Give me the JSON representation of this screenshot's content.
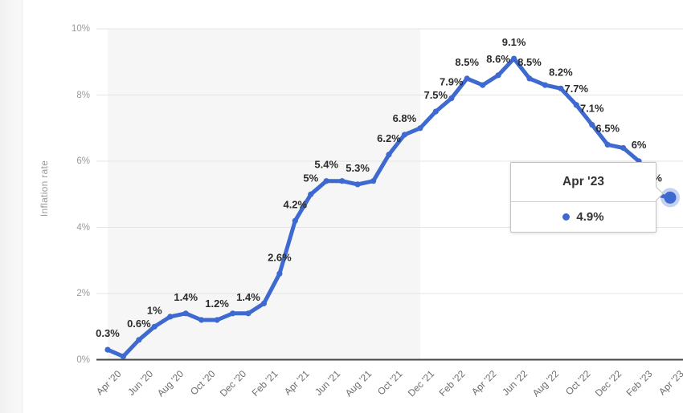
{
  "y_axis_title": "Inflation rate",
  "chart_data": {
    "type": "line",
    "ylabel": "Inflation rate",
    "ylim": [
      0,
      10
    ],
    "grid": "horizontal-only",
    "legend_position": "none",
    "y_ticks": [
      "0%",
      "2%",
      "4%",
      "6%",
      "8%",
      "10%"
    ],
    "x_tick_labels": [
      "Apr '20",
      "Jun '20",
      "Aug '20",
      "Oct '20",
      "Dec '20",
      "Feb '21",
      "Apr '21",
      "Jun '21",
      "Aug '21",
      "Oct '21",
      "Dec '21",
      "Feb '22",
      "Apr '22",
      "Jun '22",
      "Aug '22",
      "Oct '22",
      "Dec '22",
      "Feb '23",
      "Apr '23"
    ],
    "colors": {
      "line": "#3E69D0",
      "highlight_halo": "rgba(62,105,208,0.3)",
      "band": "#f6f6f6",
      "grid": "#e4e4e4",
      "axis": "#464646",
      "point_label": "#2b2b2b",
      "y_tick": "#9a9a9a",
      "x_tick": "#6e6e6e"
    },
    "series": [
      {
        "name": "Inflation rate",
        "points": [
          {
            "month": "Apr '20",
            "value": 0.3,
            "label": "0.3%"
          },
          {
            "month": "May '20",
            "value": 0.1,
            "label": ""
          },
          {
            "month": "Jun '20",
            "value": 0.6,
            "label": "0.6%"
          },
          {
            "month": "Jul '20",
            "value": 1.0,
            "label": "1%"
          },
          {
            "month": "Aug '20",
            "value": 1.3,
            "label": ""
          },
          {
            "month": "Sep '20",
            "value": 1.4,
            "label": "1.4%"
          },
          {
            "month": "Oct '20",
            "value": 1.2,
            "label": ""
          },
          {
            "month": "Nov '20",
            "value": 1.2,
            "label": "1.2%"
          },
          {
            "month": "Dec '20",
            "value": 1.4,
            "label": ""
          },
          {
            "month": "Jan '21",
            "value": 1.4,
            "label": "1.4%"
          },
          {
            "month": "Feb '21",
            "value": 1.7,
            "label": ""
          },
          {
            "month": "Mar '21",
            "value": 2.6,
            "label": "2.6%"
          },
          {
            "month": "Apr '21",
            "value": 4.2,
            "label": "4.2%"
          },
          {
            "month": "May '21",
            "value": 5.0,
            "label": "5%"
          },
          {
            "month": "Jun '21",
            "value": 5.4,
            "label": "5.4%"
          },
          {
            "month": "Jul '21",
            "value": 5.4,
            "label": ""
          },
          {
            "month": "Aug '21",
            "value": 5.3,
            "label": "5.3%"
          },
          {
            "month": "Sep '21",
            "value": 5.4,
            "label": ""
          },
          {
            "month": "Oct '21",
            "value": 6.2,
            "label": "6.2%"
          },
          {
            "month": "Nov '21",
            "value": 6.8,
            "label": "6.8%"
          },
          {
            "month": "Dec '21",
            "value": 7.0,
            "label": ""
          },
          {
            "month": "Jan '22",
            "value": 7.5,
            "label": "7.5%"
          },
          {
            "month": "Feb '22",
            "value": 7.9,
            "label": "7.9%"
          },
          {
            "month": "Mar '22",
            "value": 8.5,
            "label": "8.5%"
          },
          {
            "month": "Apr '22",
            "value": 8.3,
            "label": ""
          },
          {
            "month": "May '22",
            "value": 8.6,
            "label": "8.6%"
          },
          {
            "month": "Jun '22",
            "value": 9.1,
            "label": "9.1%"
          },
          {
            "month": "Jul '22",
            "value": 8.5,
            "label": "8.5%"
          },
          {
            "month": "Aug '22",
            "value": 8.3,
            "label": ""
          },
          {
            "month": "Sep '22",
            "value": 8.2,
            "label": "8.2%"
          },
          {
            "month": "Oct '22",
            "value": 7.7,
            "label": "7.7%"
          },
          {
            "month": "Nov '22",
            "value": 7.1,
            "label": "7.1%"
          },
          {
            "month": "Dec '22",
            "value": 6.5,
            "label": "6.5%"
          },
          {
            "month": "Jan '23",
            "value": 6.4,
            "label": ""
          },
          {
            "month": "Feb '23",
            "value": 6.0,
            "label": "6%"
          },
          {
            "month": "Mar '23",
            "value": 5.0,
            "label": "5%"
          },
          {
            "month": "Apr '23",
            "value": 4.9,
            "label": "",
            "highlighted": true
          }
        ]
      }
    ],
    "tooltip": {
      "title": "Apr '23",
      "value": "4.9%",
      "marker": "series-dot"
    }
  }
}
